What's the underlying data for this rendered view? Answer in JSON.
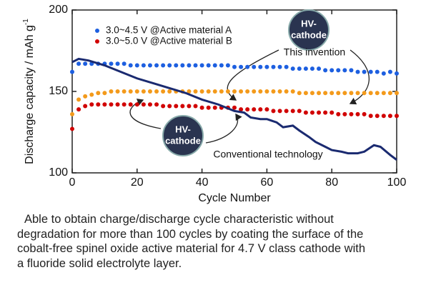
{
  "chart_data": {
    "type": "scatter",
    "y_label": "Discharge capacity / mAh g",
    "y_label_sup": "-1",
    "x_label": "Cycle Number",
    "xlim": [
      0,
      100
    ],
    "xticks": [
      0,
      20,
      40,
      60,
      80,
      100
    ],
    "ylim": [
      100,
      200
    ],
    "yticks": [
      100,
      150,
      200
    ],
    "legend": "top-left",
    "series": [
      {
        "name": "3.0~4.5 V @Active material A",
        "color": "#1d5fe0",
        "marker": "circle",
        "x": [
          0,
          2,
          4,
          6,
          8,
          10,
          12,
          14,
          16,
          18,
          20,
          22,
          24,
          26,
          28,
          30,
          32,
          34,
          36,
          38,
          40,
          42,
          44,
          46,
          48,
          50,
          52,
          54,
          56,
          58,
          60,
          62,
          64,
          66,
          68,
          70,
          72,
          74,
          76,
          78,
          80,
          82,
          84,
          86,
          88,
          90,
          92,
          94,
          96,
          98,
          100
        ],
        "values": [
          162,
          167,
          167,
          167,
          167,
          167,
          167,
          167,
          167,
          166,
          166,
          166,
          166,
          166,
          166,
          166,
          166,
          166,
          166,
          166,
          166,
          166,
          166,
          166,
          166,
          165,
          165,
          165,
          165,
          165,
          165,
          165,
          165,
          165,
          164,
          164,
          164,
          164,
          164,
          163,
          163,
          163,
          163,
          163,
          162,
          162,
          162,
          162,
          161,
          162,
          161
        ]
      },
      {
        "name": "3.0~5.0 V @Active material B",
        "color": "#d10000",
        "marker": "circle",
        "x": [
          0,
          2,
          4,
          6,
          8,
          10,
          12,
          14,
          16,
          18,
          20,
          22,
          24,
          26,
          28,
          30,
          32,
          34,
          36,
          38,
          40,
          42,
          44,
          46,
          48,
          50,
          52,
          54,
          56,
          58,
          60,
          62,
          64,
          66,
          68,
          70,
          72,
          74,
          76,
          78,
          80,
          82,
          84,
          86,
          88,
          90,
          92,
          94,
          96,
          98,
          100
        ],
        "values": [
          127,
          139,
          141,
          142,
          142,
          142,
          142,
          142,
          142,
          142,
          142,
          142,
          142,
          142,
          141,
          141,
          141,
          141,
          141,
          141,
          140,
          140,
          140,
          140,
          140,
          140,
          139,
          139,
          139,
          139,
          139,
          138,
          138,
          138,
          138,
          138,
          137,
          137,
          137,
          137,
          137,
          136,
          136,
          136,
          136,
          136,
          135,
          135,
          135,
          135,
          135
        ]
      },
      {
        "color": "#f39a1b",
        "marker": "circle",
        "x": [
          0,
          2,
          4,
          6,
          8,
          10,
          12,
          14,
          16,
          18,
          20,
          22,
          24,
          26,
          28,
          30,
          32,
          34,
          36,
          38,
          40,
          42,
          44,
          46,
          48,
          50,
          52,
          54,
          56,
          58,
          60,
          62,
          64,
          66,
          68,
          70,
          72,
          74,
          76,
          78,
          80,
          82,
          84,
          86,
          88,
          90,
          92,
          94,
          96,
          98,
          100
        ],
        "values": [
          136,
          145,
          147,
          148,
          149,
          149,
          150,
          150,
          150,
          150,
          150,
          150,
          150,
          150,
          150,
          150,
          150,
          150,
          150,
          150,
          150,
          150,
          150,
          150,
          150,
          150,
          150,
          150,
          150,
          150,
          150,
          150,
          150,
          150,
          150,
          149,
          149,
          149,
          149,
          149,
          149,
          149,
          149,
          149,
          149,
          149,
          149,
          149,
          149,
          149,
          149
        ]
      },
      {
        "color": "#1a2a70",
        "marker": "line",
        "x": [
          0,
          2,
          5,
          10,
          15,
          20,
          25,
          30,
          35,
          40,
          45,
          50,
          53,
          55,
          58,
          60,
          63,
          65,
          68,
          70,
          73,
          75,
          78,
          80,
          83,
          85,
          88,
          90,
          93,
          95,
          98,
          100
        ],
        "values": [
          168,
          170,
          169,
          166,
          162,
          158,
          155,
          152,
          149,
          145,
          142,
          138,
          137,
          134,
          133,
          133,
          131,
          128,
          129,
          126,
          122,
          119,
          116,
          114,
          113,
          112,
          112,
          113,
          117,
          116,
          111,
          108
        ]
      }
    ],
    "annotations": [
      {
        "lines": [
          "HV-",
          "cathode"
        ],
        "caption": "This invention"
      },
      {
        "lines": [
          "HV-",
          "cathode"
        ],
        "caption": "Conventional technology"
      }
    ]
  },
  "caption": [
    "Able to obtain charge/discharge cycle characteristic without",
    "degradation for more than 100 cycles by coating the surface of the",
    "cobalt-free spinel oxide active material for 4.7 V class cathode with",
    "a fluoride solid electrolyte layer."
  ]
}
